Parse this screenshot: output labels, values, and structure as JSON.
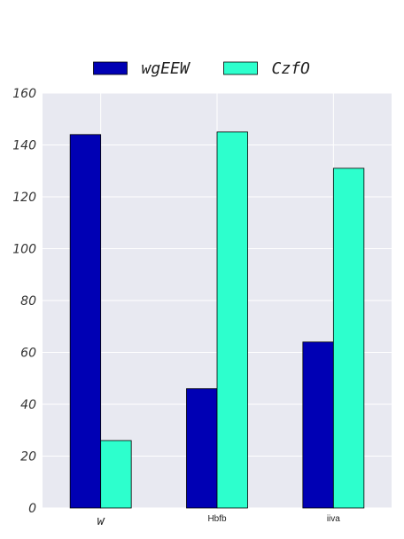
{
  "chart_data": {
    "type": "bar",
    "categories": [
      "w",
      "Hbfb",
      "iiva"
    ],
    "series": [
      {
        "name": "wgEEW",
        "values": [
          144,
          46,
          64
        ],
        "color": "#0000b4"
      },
      {
        "name": "CzfO",
        "values": [
          26,
          145,
          131
        ],
        "color": "#2dffcd"
      }
    ],
    "ylim": [
      0,
      160
    ],
    "yticks": [
      0,
      20,
      40,
      60,
      80,
      100,
      120,
      140,
      160
    ],
    "grid": true,
    "legend_position": "top-center",
    "plot_background": "#e8e9f1",
    "gridline_color": "#ffffff"
  }
}
